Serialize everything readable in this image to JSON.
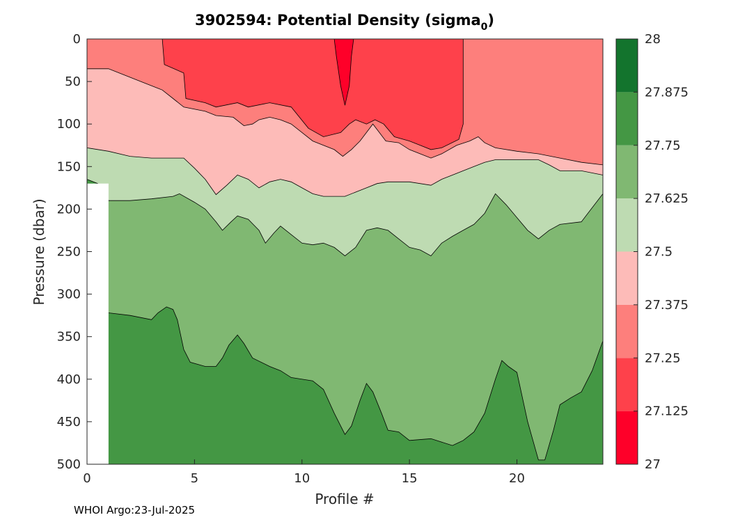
{
  "chart_data": {
    "type": "heatmap",
    "title_main": "3902594: Potential Density (sigma",
    "title_sub": "0",
    "title_end": ")",
    "xlabel": "Profile #",
    "ylabel": "Pressure (dbar)",
    "xlim": [
      0,
      24
    ],
    "ylim": [
      0,
      500
    ],
    "y_reversed": true,
    "xticks": [
      "0",
      "5",
      "10",
      "15",
      "20"
    ],
    "xtick_values": [
      0,
      5,
      10,
      15,
      20
    ],
    "yticks": [
      "0",
      "50",
      "100",
      "150",
      "200",
      "250",
      "300",
      "350",
      "400",
      "450",
      "500"
    ],
    "ytick_values": [
      0,
      50,
      100,
      150,
      200,
      250,
      300,
      350,
      400,
      450,
      500
    ],
    "colorbar": {
      "range": [
        27,
        28
      ],
      "ticks": [
        "27",
        "27.125",
        "27.25",
        "27.375",
        "27.5",
        "27.625",
        "27.75",
        "27.875",
        "28"
      ],
      "tick_values": [
        27,
        27.125,
        27.25,
        27.375,
        27.5,
        27.625,
        27.75,
        27.875,
        28
      ],
      "colors": [
        "#fe0029",
        "#fe414b",
        "#fd7f7c",
        "#fdbbb8",
        "#bedbb2",
        "#80b872",
        "#449744",
        "#13742d"
      ]
    },
    "band_colors": [
      "#fe414b",
      "#fd7f7c",
      "#fdbbb8",
      "#bedbb2",
      "#80b872",
      "#449744",
      "#fe0029"
    ],
    "no_data_region": {
      "x": [
        0,
        1
      ],
      "p": [
        170,
        500
      ]
    },
    "isopycnals": [
      {
        "value": 27.25,
        "points": [
          [
            3.5,
            0
          ],
          [
            3.6,
            30
          ],
          [
            4.5,
            40
          ],
          [
            4.6,
            70
          ],
          [
            5.5,
            75
          ],
          [
            6,
            80
          ],
          [
            7,
            75
          ],
          [
            7.5,
            80
          ],
          [
            8.5,
            75
          ],
          [
            9.5,
            80
          ],
          [
            10.3,
            105
          ],
          [
            11,
            115
          ],
          [
            11.8,
            110
          ],
          [
            12.2,
            100
          ],
          [
            12.5,
            95
          ],
          [
            13,
            100
          ],
          [
            13.4,
            95
          ],
          [
            13.8,
            100
          ],
          [
            14.3,
            115
          ],
          [
            15,
            120
          ],
          [
            15.5,
            125
          ],
          [
            16,
            130
          ],
          [
            16.5,
            128
          ],
          [
            17.3,
            118
          ],
          [
            17.5,
            100
          ],
          [
            17.5,
            0
          ]
        ]
      },
      {
        "value": 27.375,
        "points": [
          [
            0,
            35
          ],
          [
            1,
            35
          ],
          [
            1.5,
            40
          ],
          [
            2.5,
            50
          ],
          [
            3.5,
            60
          ],
          [
            4,
            70
          ],
          [
            4.5,
            80
          ],
          [
            5.5,
            85
          ],
          [
            6,
            90
          ],
          [
            6.8,
            92
          ],
          [
            7.3,
            102
          ],
          [
            7.7,
            100
          ],
          [
            8,
            95
          ],
          [
            8.5,
            92
          ],
          [
            9,
            95
          ],
          [
            9.5,
            100
          ],
          [
            10,
            110
          ],
          [
            10.5,
            120
          ],
          [
            11,
            125
          ],
          [
            11.5,
            130
          ],
          [
            11.9,
            138
          ],
          [
            12.3,
            130
          ],
          [
            12.7,
            120
          ],
          [
            13,
            110
          ],
          [
            13.3,
            100
          ],
          [
            13.6,
            110
          ],
          [
            13.9,
            120
          ],
          [
            14.5,
            122
          ],
          [
            15,
            130
          ],
          [
            15.5,
            135
          ],
          [
            16,
            140
          ],
          [
            16.5,
            135
          ],
          [
            17.2,
            125
          ],
          [
            17.8,
            120
          ],
          [
            18.2,
            115
          ],
          [
            18.5,
            122
          ],
          [
            19,
            128
          ],
          [
            20,
            132
          ],
          [
            21,
            135
          ],
          [
            22,
            140
          ],
          [
            23,
            145
          ],
          [
            24,
            148
          ]
        ]
      },
      {
        "value": 27.5,
        "points": [
          [
            0,
            128
          ],
          [
            1,
            132
          ],
          [
            2,
            138
          ],
          [
            3,
            140
          ],
          [
            4,
            140
          ],
          [
            4.5,
            140
          ],
          [
            5,
            152
          ],
          [
            5.5,
            165
          ],
          [
            6,
            183
          ],
          [
            6.5,
            172
          ],
          [
            7,
            160
          ],
          [
            7.5,
            165
          ],
          [
            8,
            175
          ],
          [
            8.5,
            168
          ],
          [
            9,
            165
          ],
          [
            9.5,
            168
          ],
          [
            10,
            175
          ],
          [
            10.5,
            182
          ],
          [
            11,
            185
          ],
          [
            12,
            185
          ],
          [
            12.5,
            180
          ],
          [
            13,
            175
          ],
          [
            13.5,
            170
          ],
          [
            14,
            168
          ],
          [
            15,
            168
          ],
          [
            16,
            172
          ],
          [
            16.5,
            165
          ],
          [
            17,
            160
          ],
          [
            17.5,
            155
          ],
          [
            18,
            150
          ],
          [
            18.5,
            145
          ],
          [
            19,
            142
          ],
          [
            20,
            142
          ],
          [
            21,
            142
          ],
          [
            21.5,
            148
          ],
          [
            22,
            155
          ],
          [
            23,
            155
          ],
          [
            24,
            160
          ]
        ]
      },
      {
        "value": 27.625,
        "points": [
          [
            0,
            165
          ],
          [
            0.5,
            170
          ],
          [
            1,
            190
          ],
          [
            2,
            190
          ],
          [
            3,
            188
          ],
          [
            4,
            185
          ],
          [
            4.3,
            182
          ],
          [
            5,
            192
          ],
          [
            5.5,
            200
          ],
          [
            6,
            215
          ],
          [
            6.3,
            225
          ],
          [
            6.7,
            215
          ],
          [
            7,
            208
          ],
          [
            7.5,
            212
          ],
          [
            8,
            225
          ],
          [
            8.3,
            240
          ],
          [
            8.7,
            228
          ],
          [
            9,
            220
          ],
          [
            9.5,
            230
          ],
          [
            10,
            240
          ],
          [
            10.5,
            242
          ],
          [
            11,
            240
          ],
          [
            11.5,
            245
          ],
          [
            12,
            255
          ],
          [
            12.5,
            245
          ],
          [
            13,
            225
          ],
          [
            13.5,
            222
          ],
          [
            14,
            225
          ],
          [
            14.5,
            235
          ],
          [
            15,
            245
          ],
          [
            15.5,
            248
          ],
          [
            16,
            255
          ],
          [
            16.5,
            240
          ],
          [
            17,
            232
          ],
          [
            17.5,
            225
          ],
          [
            18,
            218
          ],
          [
            18.5,
            205
          ],
          [
            19,
            182
          ],
          [
            19.5,
            195
          ],
          [
            20,
            210
          ],
          [
            20.5,
            225
          ],
          [
            21,
            235
          ],
          [
            21.5,
            225
          ],
          [
            22,
            218
          ],
          [
            23,
            215
          ],
          [
            23.3,
            205
          ],
          [
            24,
            182
          ]
        ]
      },
      {
        "value": 27.75,
        "points": [
          [
            1,
            322
          ],
          [
            2,
            325
          ],
          [
            3,
            330
          ],
          [
            3.3,
            322
          ],
          [
            3.7,
            315
          ],
          [
            4,
            318
          ],
          [
            4.2,
            330
          ],
          [
            4.5,
            365
          ],
          [
            4.8,
            380
          ],
          [
            5.5,
            385
          ],
          [
            6,
            385
          ],
          [
            6.3,
            375
          ],
          [
            6.6,
            360
          ],
          [
            7,
            348
          ],
          [
            7.3,
            358
          ],
          [
            7.7,
            375
          ],
          [
            8.5,
            385
          ],
          [
            9,
            390
          ],
          [
            9.5,
            398
          ],
          [
            10.5,
            402
          ],
          [
            11,
            412
          ],
          [
            11.5,
            440
          ],
          [
            12,
            465
          ],
          [
            12.3,
            455
          ],
          [
            12.7,
            425
          ],
          [
            13,
            405
          ],
          [
            13.3,
            415
          ],
          [
            13.7,
            440
          ],
          [
            14,
            460
          ],
          [
            14.5,
            462
          ],
          [
            15,
            472
          ],
          [
            16,
            470
          ],
          [
            17,
            478
          ],
          [
            17.5,
            472
          ],
          [
            18,
            462
          ],
          [
            18.5,
            440
          ],
          [
            19,
            400
          ],
          [
            19.3,
            378
          ],
          [
            19.6,
            385
          ],
          [
            20,
            392
          ],
          [
            20.5,
            450
          ],
          [
            21,
            495
          ],
          [
            21.3,
            495
          ],
          [
            21.7,
            460
          ],
          [
            22,
            430
          ],
          [
            22.5,
            422
          ],
          [
            23,
            415
          ],
          [
            23.5,
            390
          ],
          [
            24,
            355
          ]
        ]
      },
      {
        "value": 27.125,
        "points": [
          [
            11.5,
            0
          ],
          [
            11.6,
            20
          ],
          [
            11.8,
            55
          ],
          [
            12,
            78
          ],
          [
            12.2,
            55
          ],
          [
            12.3,
            20
          ],
          [
            12.4,
            0
          ]
        ]
      }
    ]
  },
  "footer": "WHOI Argo:23-Jul-2025"
}
